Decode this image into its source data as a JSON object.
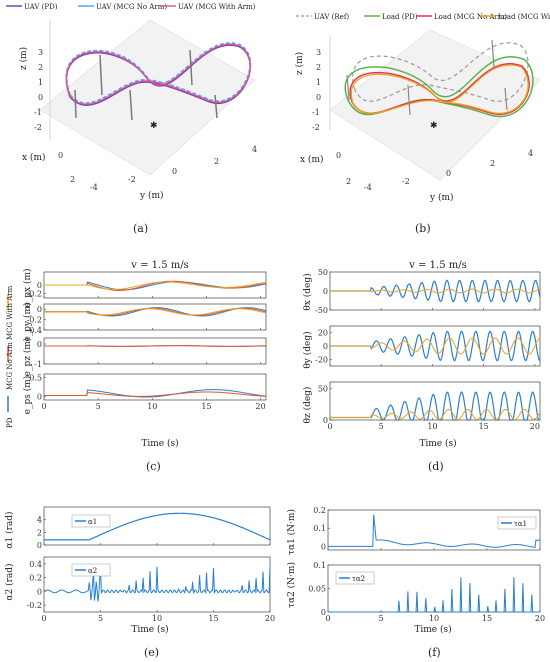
{
  "colors": {
    "blue": "#2a7fcf",
    "pd_3d": "#7b3fb5",
    "nmcg": "#5aa4e8",
    "wmcg": "#e05a8a",
    "ref": "#999999",
    "load_pd": "#5ab34a",
    "load_n": "#e0324a",
    "load_w": "#f0a020"
  },
  "panel_a": {
    "caption": "(a)",
    "legend": [
      "UAV (PD)",
      "UAV (MCG No Arm)",
      "UAV (MCG With Arm)"
    ],
    "zlabel": "z (m)",
    "xlabel": "x (m)",
    "ylabel": "y (m)",
    "zticks": [
      "3",
      "2",
      "1",
      "0",
      "-1",
      "-2"
    ],
    "xticks": [
      "0",
      "2"
    ],
    "yticks": [
      "4",
      "2",
      "0",
      "-2",
      "-4"
    ]
  },
  "panel_b": {
    "caption": "(b)",
    "legend": [
      "UAV (Ref)",
      "Load (PD)",
      "Load (MCG No Arm)",
      "Load (MCG With Arm)"
    ],
    "zlabel": "z (m)",
    "xlabel": "x (m)",
    "ylabel": "y (m)",
    "zticks": [
      "3",
      "2",
      "1",
      "0",
      "-1",
      "-2"
    ],
    "xticks": [
      "0",
      "2"
    ],
    "yticks": [
      "-4",
      "-2",
      "0",
      "2",
      "4"
    ]
  },
  "panel_c": {
    "caption": "(c)",
    "title": "v = 1.5 m/s",
    "legend": [
      "PD",
      "MCG No Arm",
      "MCG With Arm"
    ],
    "xlabel": "Time (s)",
    "ylabels": [
      "e_px (m)",
      "e_py (m)",
      "e_pz (m)",
      "e_ps (m)"
    ]
  },
  "panel_d": {
    "caption": "(d)",
    "title": "v = 1.5 m/s",
    "xlabel": "Time (s)",
    "ylabels": [
      "θx (deg)",
      "θy (deg)",
      "θz (deg)"
    ]
  },
  "panel_e": {
    "caption": "(e)",
    "xlabel": "Time (s)",
    "ylabels": [
      "α1 (rad)",
      "α2 (rad)"
    ],
    "legend": [
      "α1",
      "α2"
    ]
  },
  "panel_f": {
    "caption": "(f)",
    "xlabel": "Time (s)",
    "ylabels": [
      "τα1 (N·m)",
      "τα2 (N·m)"
    ],
    "legend": [
      "τα1",
      "τα2"
    ]
  },
  "chart_data": [
    {
      "type": "line",
      "id": "c1",
      "xlim": [
        0,
        20.5
      ],
      "ylim": [
        -0.3,
        0.3
      ],
      "yticks": [
        "0",
        "-0.2"
      ],
      "xticks": [
        "0",
        "5",
        "10",
        "15",
        "20"
      ],
      "series": [
        {
          "name": "PD",
          "start": 4,
          "amp": 0.09,
          "freq": 0.5
        },
        {
          "name": "MCG No Arm",
          "start": 4,
          "amp": 0.1,
          "freq": 0.5
        },
        {
          "name": "MCG With Arm",
          "start": 4,
          "amp": 0.08,
          "freq": 0.5
        }
      ]
    },
    {
      "type": "line",
      "id": "c2",
      "xlim": [
        0,
        20.5
      ],
      "ylim": [
        -0.4,
        0.1
      ],
      "yticks": [
        "0",
        "-0.2",
        "-0.4"
      ],
      "xticks": [
        "0",
        "5",
        "10",
        "15",
        "20"
      ],
      "series": [
        {
          "name": "PD",
          "start": 4,
          "amp": 0.08,
          "freq": 0.6
        },
        {
          "name": "MCG No Arm",
          "start": 4,
          "amp": 0.07,
          "freq": 0.6
        },
        {
          "name": "MCG With Arm",
          "start": 4,
          "amp": 0.06,
          "freq": 0.6
        }
      ]
    },
    {
      "type": "line",
      "id": "c3",
      "xlim": [
        0,
        20.5
      ],
      "ylim": [
        -1,
        0.3
      ],
      "yticks": [
        "0",
        "-1"
      ],
      "xticks": [
        "0",
        "5",
        "10",
        "15",
        "20"
      ],
      "series": [
        {
          "name": "PD",
          "start": 4,
          "amp": 0.02,
          "freq": 0.5
        },
        {
          "name": "MCG No Arm",
          "start": 4,
          "amp": 0.02,
          "freq": 0.5
        }
      ]
    },
    {
      "type": "line",
      "id": "c4",
      "xlim": [
        0,
        20.5
      ],
      "ylim": [
        -0.1,
        0.6
      ],
      "yticks": [
        "0.5",
        "0"
      ],
      "xticks": [
        "0",
        "5",
        "10",
        "15",
        "20"
      ],
      "series": [
        {
          "name": "PD",
          "start": 4,
          "amp": 0.1,
          "freq": 0.4
        },
        {
          "name": "MCG No Arm",
          "start": 4,
          "amp": 0.06,
          "freq": 0.4
        }
      ]
    },
    {
      "type": "line",
      "id": "d1",
      "xlim": [
        0,
        20.5
      ],
      "ylim": [
        -50,
        50
      ],
      "yticks": [
        "50",
        "0",
        "-50"
      ],
      "xticks": [
        "0",
        "5",
        "10",
        "15",
        "20"
      ],
      "series": [
        {
          "name": "PD",
          "start": 4,
          "amp": 28,
          "freq": 0.9
        },
        {
          "name": "MCG",
          "start": 4,
          "amp": 5,
          "freq": 0.5
        }
      ]
    },
    {
      "type": "line",
      "id": "d2",
      "xlim": [
        0,
        20.5
      ],
      "ylim": [
        -30,
        30
      ],
      "yticks": [
        "20",
        "0",
        "-20"
      ],
      "xticks": [
        "0",
        "5",
        "10",
        "15",
        "20"
      ],
      "series": [
        {
          "name": "PD",
          "start": 4,
          "amp": 22,
          "freq": 0.8
        },
        {
          "name": "MCG",
          "start": 4,
          "amp": 12,
          "freq": 0.5
        }
      ]
    },
    {
      "type": "line",
      "id": "d3",
      "xlim": [
        0,
        20.5
      ],
      "ylim": [
        0,
        60
      ],
      "yticks": [
        "50",
        "0"
      ],
      "xticks": [
        "0",
        "5",
        "10",
        "15",
        "20"
      ],
      "series": [
        {
          "name": "PD",
          "start": 4,
          "amp": 25,
          "freq": 0.8
        },
        {
          "name": "MCG",
          "start": 4,
          "amp": 8,
          "freq": 0.6
        }
      ]
    },
    {
      "type": "line",
      "id": "e1",
      "xlim": [
        0,
        20
      ],
      "ylim": [
        0,
        6
      ],
      "yticks": [
        "4",
        "2",
        "0"
      ],
      "xticks": [
        "0",
        "5",
        "10",
        "15",
        "20"
      ],
      "series": [
        {
          "name": "α1"
        }
      ]
    },
    {
      "type": "line",
      "id": "e2",
      "xlim": [
        0,
        20
      ],
      "ylim": [
        -0.3,
        0.5
      ],
      "yticks": [
        "0.4",
        "0.2",
        "0",
        "-0.2"
      ],
      "xticks": [
        "0",
        "5",
        "10",
        "15",
        "20"
      ],
      "series": [
        {
          "name": "α2"
        }
      ]
    },
    {
      "type": "line",
      "id": "f1",
      "xlim": [
        0,
        20
      ],
      "ylim": [
        -0.02,
        0.2
      ],
      "yticks": [
        "0.2",
        "0.1",
        "0"
      ],
      "xticks": [
        "0",
        "5",
        "10",
        "15",
        "20"
      ],
      "series": [
        {
          "name": "τα1"
        }
      ]
    },
    {
      "type": "line",
      "id": "f2",
      "xlim": [
        0,
        20
      ],
      "ylim": [
        0,
        0.1
      ],
      "yticks": [
        "0.1",
        "0.05",
        "0"
      ],
      "xticks": [
        "0",
        "5",
        "10",
        "15",
        "20"
      ],
      "series": [
        {
          "name": "τα2"
        }
      ]
    }
  ]
}
